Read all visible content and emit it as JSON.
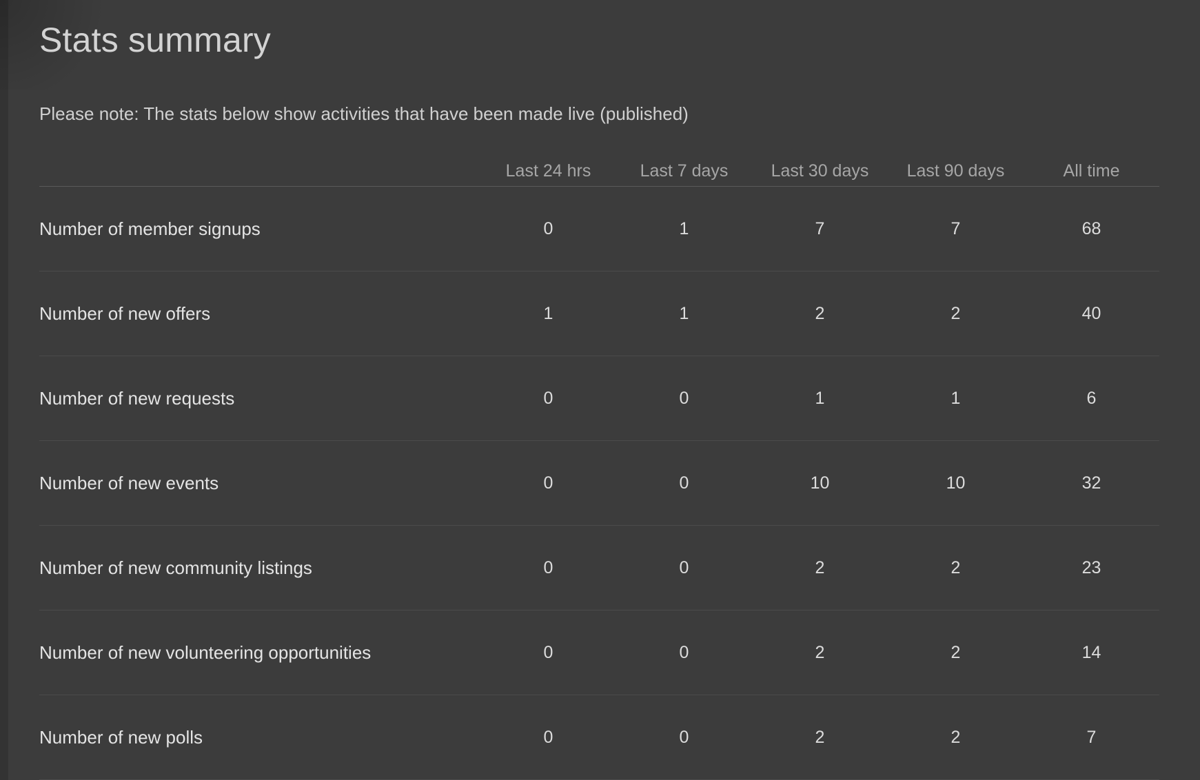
{
  "page": {
    "title": "Stats summary",
    "note": "Please note: The stats below show activities that have been made live (published)"
  },
  "table": {
    "columns": [
      "Last 24 hrs",
      "Last 7 days",
      "Last 30 days",
      "Last 90 days",
      "All time"
    ],
    "rows": [
      {
        "label": "Number of member signups",
        "values": [
          "0",
          "1",
          "7",
          "7",
          "68"
        ]
      },
      {
        "label": "Number of new offers",
        "values": [
          "1",
          "1",
          "2",
          "2",
          "40"
        ]
      },
      {
        "label": "Number of new requests",
        "values": [
          "0",
          "0",
          "1",
          "1",
          "6"
        ]
      },
      {
        "label": "Number of new events",
        "values": [
          "0",
          "0",
          "10",
          "10",
          "32"
        ]
      },
      {
        "label": "Number of new community listings",
        "values": [
          "0",
          "0",
          "2",
          "2",
          "23"
        ]
      },
      {
        "label": "Number of new volunteering opportunities",
        "values": [
          "0",
          "0",
          "2",
          "2",
          "14"
        ]
      },
      {
        "label": "Number of new polls",
        "values": [
          "0",
          "0",
          "2",
          "2",
          "7"
        ]
      }
    ]
  },
  "colors": {
    "background": "#3c3c3c",
    "left_edge": "#333333",
    "title_text": "#d3d3d3",
    "note_text": "#d0d0d0",
    "header_text": "#a6a6a6",
    "label_text": "#e4e4e4",
    "value_text": "#dcdcdc",
    "header_divider": "#5a5a5a",
    "row_divider": "#4b4b4b"
  }
}
